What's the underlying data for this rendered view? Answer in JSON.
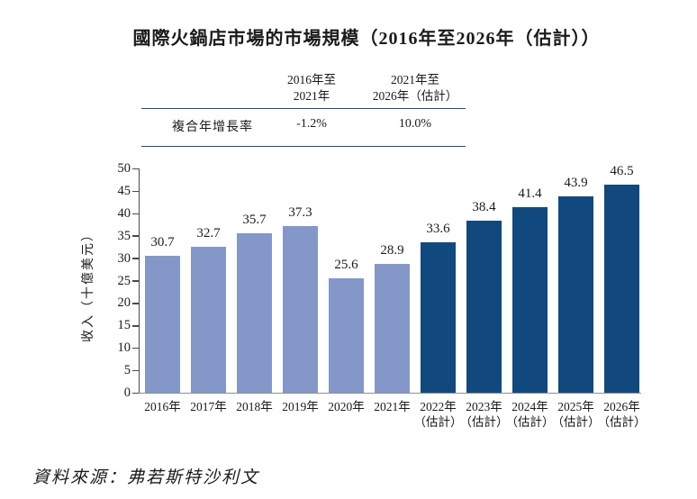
{
  "page": {
    "title": "國際火鍋店市場的市場規模（2016年至2026年（估計））",
    "source": "資料來源：弗若斯特沙利文"
  },
  "cagr_table": {
    "row_label": "複合年增長率",
    "col1_line1": "2016年至",
    "col1_line2": "2021年",
    "col2_line1": "2021年至",
    "col2_line2": "2026年（估計）",
    "col1_value": "-1.2%",
    "col2_value": "10.0%"
  },
  "chart_data": {
    "type": "bar",
    "title": "國際火鍋店市場的市場規模（2016年至2026年（估計））",
    "ylabel": "收入（十億美元）",
    "ylim": [
      0,
      50
    ],
    "yticks": [
      0,
      5,
      10,
      15,
      20,
      25,
      30,
      35,
      40,
      45,
      50
    ],
    "grid": false,
    "legend": "none",
    "categories": [
      "2016年",
      "2017年",
      "2018年",
      "2019年",
      "2020年",
      "2021年",
      "2022年（估計）",
      "2023年（估計）",
      "2024年（估計）",
      "2025年（估計）",
      "2026年（估計）"
    ],
    "category_lines": [
      [
        "2016年"
      ],
      [
        "2017年"
      ],
      [
        "2018年"
      ],
      [
        "2019年"
      ],
      [
        "2020年"
      ],
      [
        "2021年"
      ],
      [
        "2022年",
        "（估計）"
      ],
      [
        "2023年",
        "（估計）"
      ],
      [
        "2024年",
        "（估計）"
      ],
      [
        "2025年",
        "（估計）"
      ],
      [
        "2026年",
        "（估計）"
      ]
    ],
    "values": [
      30.7,
      32.7,
      35.7,
      37.3,
      25.6,
      28.9,
      33.6,
      38.4,
      41.4,
      43.9,
      46.5
    ],
    "value_labels": [
      "30.7",
      "32.7",
      "35.7",
      "37.3",
      "25.6",
      "28.9",
      "33.6",
      "38.4",
      "41.4",
      "43.9",
      "46.5"
    ],
    "estimated_from_index": 6,
    "bar_colors": {
      "historical": "#8497C9",
      "estimated": "#11497E"
    }
  },
  "colors": {
    "table_rule": "#1F4E79",
    "axis": "#4A4A4A",
    "baseline": "#8F8F8F",
    "text": "#1A1A1A"
  }
}
